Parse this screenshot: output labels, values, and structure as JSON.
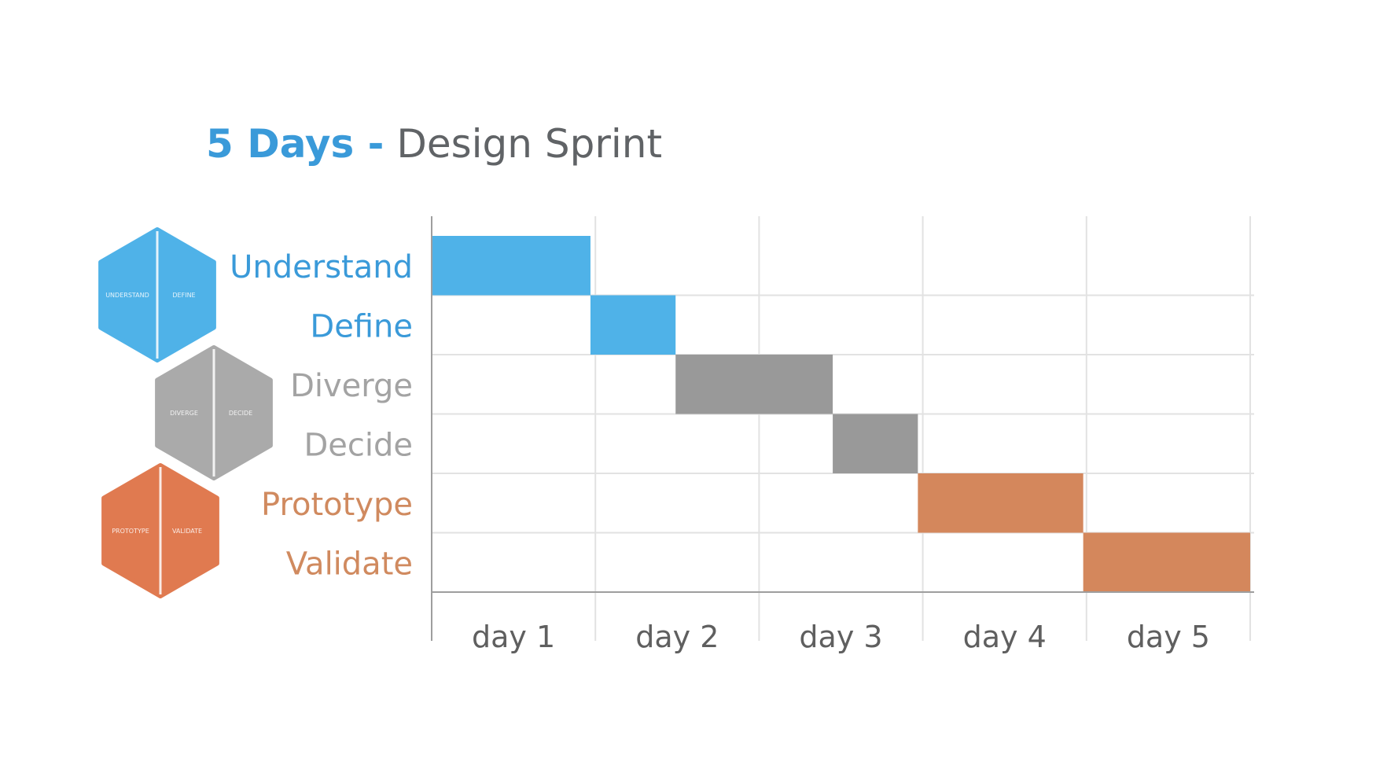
{
  "title": {
    "strong": "5 Days -",
    "rest": "Design Sprint",
    "strong_color": "#3a9ad9"
  },
  "colors": {
    "blue": "#4fb2e8",
    "blue_text": "#3a9ad9",
    "gray": "#999999",
    "gray_text": "#a3a3a3",
    "orange": "#d4875c",
    "orange_text": "#d08a5f",
    "grid": "#e2e2e2",
    "axis": "#9e9e9e",
    "tick_text": "#5f5f5f"
  },
  "hexagons": [
    {
      "left": "UNDERSTAND",
      "right": "DEFINE",
      "color": "#4fb2e8"
    },
    {
      "left": "DIVERGE",
      "right": "DECIDE",
      "color": "#aaaaaa"
    },
    {
      "left": "PROTOTYPE",
      "right": "VALIDATE",
      "color": "#e07a50"
    }
  ],
  "chart_data": {
    "type": "gantt",
    "title": "5 Days - Design Sprint",
    "xlabel": "",
    "ylabel": "",
    "x_categories": [
      "day 1",
      "day 2",
      "day 3",
      "day 4",
      "day 5"
    ],
    "xlim": [
      0,
      5
    ],
    "grid": true,
    "tasks": [
      {
        "name": "Understand",
        "start": 0.0,
        "end": 0.97,
        "color": "#4fb2e8",
        "label_color": "#3a9ad9"
      },
      {
        "name": "Define",
        "start": 0.97,
        "end": 1.49,
        "color": "#4fb2e8",
        "label_color": "#3a9ad9"
      },
      {
        "name": "Diverge",
        "start": 1.49,
        "end": 2.45,
        "color": "#999999",
        "label_color": "#a3a3a3"
      },
      {
        "name": "Decide",
        "start": 2.45,
        "end": 2.97,
        "color": "#999999",
        "label_color": "#a3a3a3"
      },
      {
        "name": "Prototype",
        "start": 2.97,
        "end": 3.98,
        "color": "#d4875c",
        "label_color": "#d08a5f"
      },
      {
        "name": "Validate",
        "start": 3.98,
        "end": 5.0,
        "color": "#d4875c",
        "label_color": "#d08a5f"
      }
    ]
  }
}
